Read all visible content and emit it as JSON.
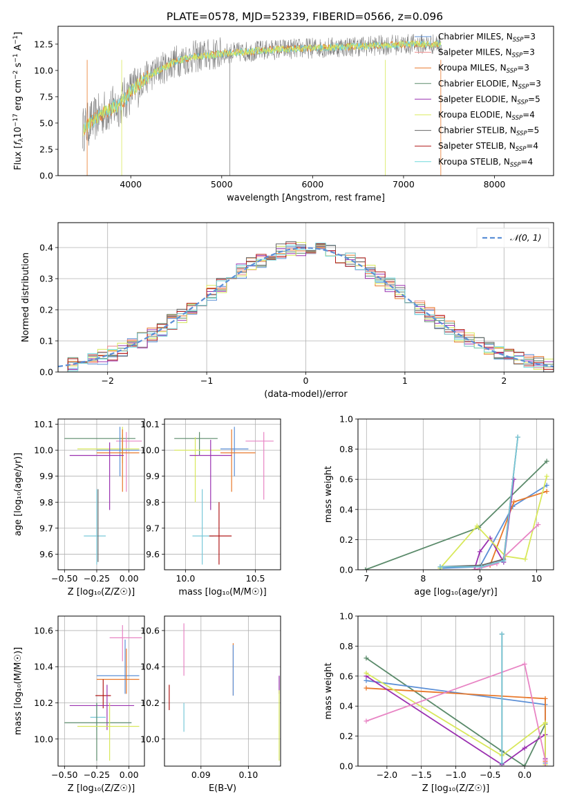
{
  "figure_title": "PLATE=0578, MJD=52339, FIBERID=0566, z=0.096",
  "colors": {
    "Chabrier MILES": "#5b8fd6",
    "Salpeter MILES": "#ee8a8a",
    "Kroupa MILES": "#e8782a",
    "Chabrier ELODIE": "#5a8a6a",
    "Salpeter ELODIE": "#9a30b0",
    "Kroupa ELODIE": "#d8e85a",
    "Chabrier STELIB": "#666666",
    "Salpeter STELIB": "#b01818",
    "Kroupa STELIB": "#6fd8dc",
    "normal": "#5b8fd6",
    "observed": "#7f7f7f",
    "pink": "#e884c4",
    "light_blue": "#78c8d8"
  },
  "chart_data": [
    {
      "id": "spectrum",
      "type": "line",
      "xlabel": "wavelength [Angstrom, rest frame]",
      "ylabel": "Flux [f_λ 10⁻¹⁷ erg cm⁻² s⁻¹ A⁻¹]",
      "ylabel_parts": {
        "a": "Flux [",
        "b": "f",
        "c": "λ",
        "d": "10",
        "e": "−17",
        "f": " erg cm",
        "g": "−2",
        "h": " s",
        "i": "−1",
        "j": " A",
        "k": "−1",
        "l": "]"
      },
      "xlim": [
        3200,
        8650
      ],
      "ylim": [
        0,
        14.2
      ],
      "x_ticks": [
        4000,
        5000,
        6000,
        7000,
        8000
      ],
      "y_ticks": [
        "0.0",
        "2.5",
        "5.0",
        "7.5",
        "10.0",
        "12.5"
      ],
      "y_tick_values": [
        0,
        2.5,
        5.0,
        7.5,
        10.0,
        12.5
      ],
      "continuum": {
        "x": [
          3450,
          3550,
          3700,
          3800,
          3900,
          4000,
          4150,
          4300,
          4500,
          4700,
          5000,
          5300,
          5600,
          5900,
          6200,
          6500,
          6800,
          7100,
          7400
        ],
        "y": [
          4.2,
          5.0,
          6.0,
          6.4,
          6.9,
          8.0,
          9.2,
          10.0,
          10.9,
          11.3,
          11.6,
          11.8,
          12.0,
          12.1,
          12.2,
          12.3,
          12.4,
          12.5,
          12.5
        ]
      },
      "legend": [
        {
          "label": "Chabrier MILES, N",
          "sub": "SSP",
          "n": "=3",
          "color": "#5b8fd6"
        },
        {
          "label": "Salpeter MILES, N",
          "sub": "SSP",
          "n": "=3",
          "color": "#ee8a8a"
        },
        {
          "label": "Kroupa MILES, N",
          "sub": "SSP",
          "n": "=3",
          "color": "#e8782a"
        },
        {
          "label": "Chabrier ELODIE, N",
          "sub": "SSP",
          "n": "=3",
          "color": "#5a8a6a"
        },
        {
          "label": "Salpeter ELODIE, N",
          "sub": "SSP",
          "n": "=5",
          "color": "#9a30b0"
        },
        {
          "label": "Kroupa ELODIE, N",
          "sub": "SSP",
          "n": "=4",
          "color": "#d8e85a"
        },
        {
          "label": "Chabrier STELIB, N",
          "sub": "SSP",
          "n": "=5",
          "color": "#666666"
        },
        {
          "label": "Salpeter STELIB, N",
          "sub": "SSP",
          "n": "=4",
          "color": "#b01818"
        },
        {
          "label": "Kroupa STELIB, N",
          "sub": "SSP",
          "n": "=4",
          "color": "#6fd8dc"
        }
      ]
    },
    {
      "id": "residuals",
      "type": "histogram",
      "xlabel": "(data-model)/error",
      "ylabel": "Normed distribution",
      "xlim": [
        -2.5,
        2.5
      ],
      "ylim": [
        0,
        0.48
      ],
      "x_ticks": [
        "−2",
        "−1",
        "0",
        "1",
        "2"
      ],
      "x_tick_values": [
        -2,
        -1,
        0,
        1,
        2
      ],
      "y_ticks": [
        "0.0",
        "0.1",
        "0.2",
        "0.3",
        "0.4"
      ],
      "y_tick_values": [
        0,
        0.1,
        0.2,
        0.3,
        0.4
      ],
      "bin_width": 0.1,
      "legend": [
        {
          "label": "𝒩(0, 1)",
          "color": "#5b8fd6",
          "style": "dashed"
        }
      ]
    },
    {
      "id": "z-age",
      "type": "scatter",
      "xlabel": "Z [log₁₀(Z/Z☉)]",
      "ylabel": "age  [log₁₀(age/yr)]",
      "xlim": [
        -0.55,
        0.12
      ],
      "ylim": [
        9.54,
        10.12
      ],
      "x_ticks": [
        "−0.50",
        "−0.25",
        "0.00"
      ],
      "x_tick_values": [
        -0.5,
        -0.25,
        0.0
      ],
      "y_ticks": [
        "9.6",
        "9.7",
        "9.8",
        "9.9",
        "10.0",
        "10.1"
      ],
      "y_tick_values": [
        9.6,
        9.7,
        9.8,
        9.9,
        10.0,
        10.1
      ],
      "points": [
        {
          "x": -0.05,
          "y": 10.045,
          "dx": [
            -0.5,
            0.05
          ],
          "dy": [
            9.98,
            10.06
          ],
          "color": "#5a8a6a"
        },
        {
          "x": -0.02,
          "y": 10.035,
          "dx": [
            -0.1,
            0.1
          ],
          "dy": [
            9.84,
            10.07
          ],
          "color": "#e884c4"
        },
        {
          "x": -0.05,
          "y": 10.005,
          "dx": [
            -0.4,
            0.08
          ],
          "dy": [
            9.95,
            10.09
          ],
          "color": "#d8e85a"
        },
        {
          "x": -0.07,
          "y": 10.0,
          "dx": [
            -0.25,
            0.08
          ],
          "dy": [
            9.9,
            10.09
          ],
          "color": "#5b8fd6"
        },
        {
          "x": -0.05,
          "y": 9.99,
          "dx": [
            -0.25,
            0.08
          ],
          "dy": [
            9.84,
            10.08
          ],
          "color": "#e8782a"
        },
        {
          "x": -0.15,
          "y": 9.98,
          "dx": [
            -0.46,
            -0.04
          ],
          "dy": [
            9.77,
            10.03
          ],
          "color": "#9a30b0"
        },
        {
          "x": -0.25,
          "y": 9.67,
          "dx": [
            -0.35,
            -0.18
          ],
          "dy": [
            9.56,
            9.85
          ],
          "color": "#78c8d8"
        },
        {
          "x": -0.24,
          "y": 9.65,
          "dx": [
            -0.24,
            -0.24
          ],
          "dy": [
            9.57,
            9.85
          ],
          "color": "#666666"
        }
      ]
    },
    {
      "id": "mass-age",
      "type": "scatter",
      "xlabel": "mass [log₁₀(M/M☉)]",
      "ylabel": "",
      "xlim": [
        9.85,
        10.68
      ],
      "ylim": [
        9.54,
        10.12
      ],
      "x_ticks": [
        "10.0",
        "10.5"
      ],
      "x_tick_values": [
        10.0,
        10.5
      ],
      "y_ticks": [
        "9.6",
        "9.7",
        "9.8",
        "9.9",
        "10.0",
        "10.1"
      ],
      "y_tick_values": [
        9.6,
        9.7,
        9.8,
        9.9,
        10.0,
        10.1
      ],
      "points": [
        {
          "x": 10.1,
          "y": 10.045,
          "dx": [
            9.92,
            10.23
          ],
          "dy": [
            9.98,
            10.07
          ],
          "color": "#5a8a6a"
        },
        {
          "x": 10.56,
          "y": 10.035,
          "dx": [
            10.43,
            10.63
          ],
          "dy": [
            9.81,
            10.07
          ],
          "color": "#e884c4"
        },
        {
          "x": 10.07,
          "y": 10.0,
          "dx": [
            9.92,
            10.25
          ],
          "dy": [
            9.8,
            10.05
          ],
          "color": "#d8e85a"
        },
        {
          "x": 10.35,
          "y": 10.005,
          "dx": [
            10.25,
            10.45
          ],
          "dy": [
            9.9,
            10.09
          ],
          "color": "#5b8fd6"
        },
        {
          "x": 10.33,
          "y": 9.99,
          "dx": [
            10.25,
            10.5
          ],
          "dy": [
            9.84,
            10.08
          ],
          "color": "#e8782a"
        },
        {
          "x": 10.18,
          "y": 9.98,
          "dx": [
            10.03,
            10.33
          ],
          "dy": [
            9.77,
            10.04
          ],
          "color": "#9a30b0"
        },
        {
          "x": 10.12,
          "y": 9.67,
          "dx": [
            10.05,
            10.2
          ],
          "dy": [
            9.56,
            9.85
          ],
          "color": "#78c8d8"
        },
        {
          "x": 10.24,
          "y": 9.67,
          "dx": [
            10.17,
            10.33
          ],
          "dy": [
            9.56,
            9.8
          ],
          "color": "#b01818"
        }
      ]
    },
    {
      "id": "age-weight",
      "type": "line",
      "xlabel": "age  [log₁₀(age/yr)]",
      "ylabel": "mass weight",
      "xlim": [
        6.85,
        10.3
      ],
      "ylim": [
        0,
        1.0
      ],
      "x_ticks": [
        "7",
        "8",
        "9",
        "10"
      ],
      "x_tick_values": [
        7,
        8,
        9,
        10
      ],
      "y_ticks": [
        "0.0",
        "0.2",
        "0.4",
        "0.6",
        "0.8",
        "1.0"
      ],
      "y_tick_values": [
        0,
        0.2,
        0.4,
        0.6,
        0.8,
        1.0
      ],
      "series": [
        {
          "color": "#5a8a6a",
          "x": [
            6.98,
            8.98,
            10.18
          ],
          "y": [
            0.0,
            0.28,
            0.72
          ]
        },
        {
          "color": "#5b8fd6",
          "x": [
            8.3,
            9.0,
            9.58,
            10.18
          ],
          "y": [
            0.01,
            0.02,
            0.42,
            0.56
          ]
        },
        {
          "color": "#e8782a",
          "x": [
            9.18,
            9.6,
            10.18
          ],
          "y": [
            0.03,
            0.45,
            0.52
          ]
        },
        {
          "color": "#9a30b0",
          "x": [
            8.9,
            9.0,
            9.18,
            9.42,
            9.6
          ],
          "y": [
            0.0,
            0.12,
            0.21,
            0.05,
            0.6
          ]
        },
        {
          "color": "#d8e85a",
          "x": [
            8.3,
            8.95,
            9.45,
            9.8,
            10.18
          ],
          "y": [
            0.01,
            0.29,
            0.09,
            0.07,
            0.62
          ]
        },
        {
          "color": "#e884c4",
          "x": [
            8.9,
            9.3,
            10.03
          ],
          "y": [
            0.0,
            0.04,
            0.3
          ]
        },
        {
          "color": "#666666",
          "x": [
            8.3,
            9.03,
            9.42,
            9.67
          ],
          "y": [
            0.02,
            0.03,
            0.07,
            0.88
          ]
        },
        {
          "color": "#78c8d8",
          "x": [
            8.3,
            9.03,
            9.42,
            9.67
          ],
          "y": [
            0.02,
            0.02,
            0.06,
            0.88
          ]
        }
      ]
    },
    {
      "id": "z-mass",
      "type": "scatter",
      "xlabel": "Z [log₁₀(Z/Z☉)]",
      "ylabel": "mass [log₁₀(M/M☉)]",
      "xlim": [
        -0.55,
        0.12
      ],
      "ylim": [
        9.85,
        10.68
      ],
      "x_ticks": [
        "−0.50",
        "−0.25",
        "0.00"
      ],
      "x_tick_values": [
        -0.5,
        -0.25,
        0.0
      ],
      "y_ticks": [
        "10.0",
        "10.2",
        "10.4",
        "10.6"
      ],
      "y_tick_values": [
        10.0,
        10.2,
        10.4,
        10.6
      ],
      "points": [
        {
          "x": -0.05,
          "y": 10.56,
          "dx": [
            -0.15,
            0.1
          ],
          "dy": [
            10.43,
            10.63
          ],
          "color": "#e884c4"
        },
        {
          "x": -0.03,
          "y": 10.35,
          "dx": [
            -0.25,
            0.08
          ],
          "dy": [
            10.25,
            10.55
          ],
          "color": "#5b8fd6"
        },
        {
          "x": -0.02,
          "y": 10.33,
          "dx": [
            -0.25,
            0.08
          ],
          "dy": [
            10.25,
            10.5
          ],
          "color": "#e8782a"
        },
        {
          "x": -0.2,
          "y": 10.24,
          "dx": [
            -0.26,
            -0.14
          ],
          "dy": [
            10.17,
            10.33
          ],
          "color": "#b01818"
        },
        {
          "x": -0.17,
          "y": 10.185,
          "dx": [
            -0.46,
            0.04
          ],
          "dy": [
            10.05,
            10.3
          ],
          "color": "#9a30b0"
        },
        {
          "x": -0.25,
          "y": 10.12,
          "dx": [
            -0.3,
            -0.18
          ],
          "dy": [
            10.05,
            10.2
          ],
          "color": "#78c8d8"
        },
        {
          "x": -0.25,
          "y": 10.09,
          "dx": [
            -0.5,
            0.02
          ],
          "dy": [
            9.88,
            10.2
          ],
          "color": "#5a8a6a"
        },
        {
          "x": -0.15,
          "y": 10.07,
          "dx": [
            -0.4,
            0.08
          ],
          "dy": [
            9.88,
            10.2
          ],
          "color": "#d8e85a"
        }
      ]
    },
    {
      "id": "ebv-mass",
      "type": "scatter",
      "xlabel": "E(B-V)",
      "ylabel": "",
      "xlim": [
        0.0823,
        0.1068
      ],
      "ylim": [
        9.85,
        10.68
      ],
      "x_ticks": [
        "0.09",
        "0.10"
      ],
      "x_tick_values": [
        0.09,
        0.1
      ],
      "y_ticks": [
        "10.0",
        "10.2",
        "10.4",
        "10.6"
      ],
      "y_tick_values": [
        10.0,
        10.2,
        10.4,
        10.6
      ],
      "points": [
        {
          "x": 0.0833,
          "y": 10.24,
          "dy": [
            10.16,
            10.3
          ],
          "color": "#b01818"
        },
        {
          "x": 0.0864,
          "y": 10.49,
          "dy": [
            10.35,
            10.64
          ],
          "color": "#e884c4"
        },
        {
          "x": 0.0864,
          "y": 10.12,
          "dy": [
            10.04,
            10.2
          ],
          "color": "#78c8d8"
        },
        {
          "x": 0.0968,
          "y": 10.38,
          "dy": [
            10.24,
            10.53
          ],
          "color": "#e8782a"
        },
        {
          "x": 0.0968,
          "y": 10.38,
          "dy": [
            10.24,
            10.52
          ],
          "color": "#5b8fd6"
        },
        {
          "x": 0.1065,
          "y": 10.3,
          "dy": [
            10.25,
            10.35
          ],
          "color": "#9a30b0"
        },
        {
          "x": 0.1065,
          "y": 10.08,
          "dy": [
            9.88,
            10.27
          ],
          "color": "#d8e85a"
        }
      ]
    },
    {
      "id": "z-weight",
      "type": "line",
      "xlabel": "Z [log₁₀(Z/Z☉)]",
      "ylabel": "mass weight",
      "xlim": [
        -2.42,
        0.42
      ],
      "ylim": [
        0,
        1.0
      ],
      "x_ticks": [
        "−2.0",
        "−1.5",
        "−1.0",
        "−0.5",
        "0.0"
      ],
      "x_tick_values": [
        -2.0,
        -1.5,
        -1.0,
        -0.5,
        0.0
      ],
      "y_ticks": [
        "0.0",
        "0.2",
        "0.4",
        "0.6",
        "0.8",
        "1.0"
      ],
      "y_tick_values": [
        0,
        0.2,
        0.4,
        0.6,
        0.8,
        1.0
      ],
      "series": [
        {
          "color": "#5a8a6a",
          "x": [
            -2.3,
            -0.33,
            0.0,
            0.3
          ],
          "y": [
            0.72,
            0.1,
            0.0,
            0.28
          ]
        },
        {
          "color": "#5b8fd6",
          "x": [
            -2.3,
            0.3,
            0.3
          ],
          "y": [
            0.57,
            0.41,
            0.02
          ]
        },
        {
          "color": "#e8782a",
          "x": [
            -2.3,
            0.3,
            0.3
          ],
          "y": [
            0.52,
            0.45,
            0.03
          ]
        },
        {
          "color": "#9a30b0",
          "x": [
            -2.3,
            -0.33,
            0.0,
            0.3,
            0.3
          ],
          "y": [
            0.6,
            0.01,
            0.12,
            0.21,
            0.05
          ]
        },
        {
          "color": "#d8e85a",
          "x": [
            -2.3,
            -0.33,
            0.3,
            0.3
          ],
          "y": [
            0.62,
            0.07,
            0.29,
            0.01
          ]
        },
        {
          "color": "#e884c4",
          "x": [
            -2.3,
            0.0,
            0.3,
            0.3
          ],
          "y": [
            0.3,
            0.68,
            0.04,
            0.0
          ]
        },
        {
          "color": "#666666",
          "x": [
            -0.33,
            -0.33
          ],
          "y": [
            0.02,
            0.88
          ]
        },
        {
          "color": "#78c8d8",
          "x": [
            -0.33,
            -0.33
          ],
          "y": [
            0.02,
            0.88
          ]
        }
      ]
    }
  ]
}
